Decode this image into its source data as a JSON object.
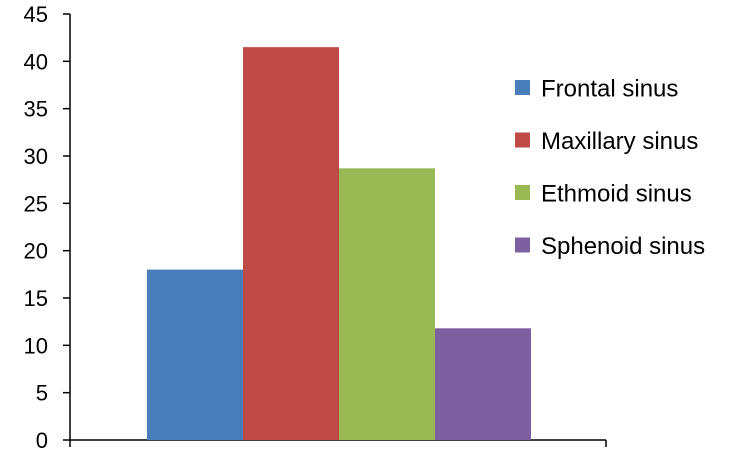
{
  "chart_data": {
    "type": "bar",
    "series": [
      {
        "name": "Frontal sinus",
        "value": 18,
        "color": "#4a7ebb"
      },
      {
        "name": "Maxillary sinus",
        "value": 41.5,
        "color": "#be4b48"
      },
      {
        "name": "Ethmoid sinus",
        "value": 28.7,
        "color": "#98b954"
      },
      {
        "name": "Sphenoid sinus",
        "value": 11.8,
        "color": "#7d60a0"
      }
    ],
    "yticks": [
      "0",
      "5",
      "10",
      "15",
      "20",
      "25",
      "30",
      "35",
      "40",
      "45"
    ],
    "ylim": [
      0,
      45
    ],
    "grid": false,
    "legend_position": "right",
    "title": "",
    "xlabel": "",
    "ylabel": ""
  }
}
